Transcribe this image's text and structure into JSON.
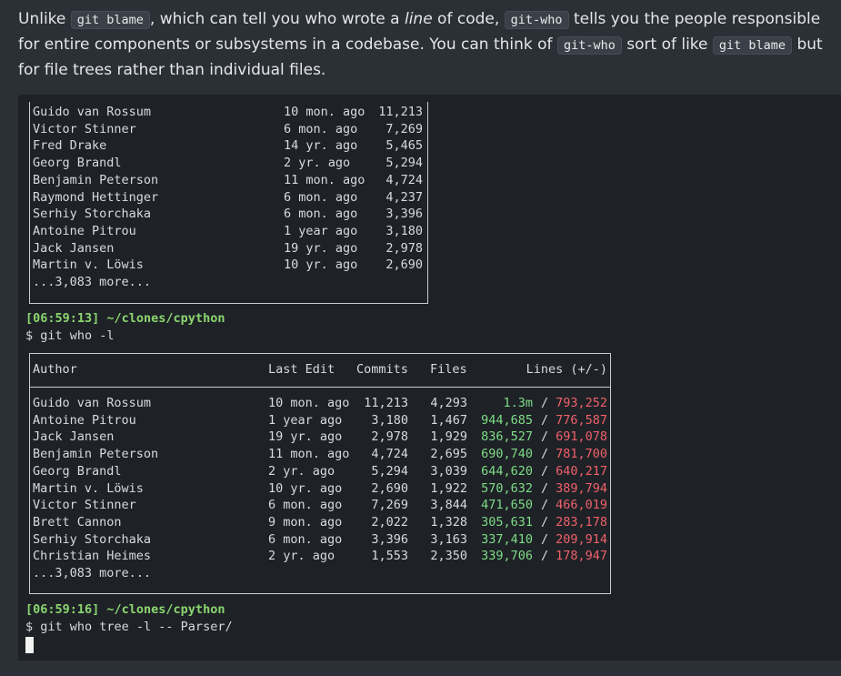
{
  "intro": {
    "p1": "Unlike ",
    "code1": "git blame",
    "p2": ", which can tell you who wrote a ",
    "em": "line",
    "p3": " of code, ",
    "code2": "git-who",
    "p4": " tells you the people responsible for entire components or subsystems in a codebase. You can think of ",
    "code3": "git-who",
    "p5": " sort of like ",
    "code4": "git blame",
    "p6": " but for file trees rather than individual files."
  },
  "table1": {
    "rows": [
      {
        "name": "Guido van Rossum",
        "edit": "10 mon. ago",
        "commits": "11,213"
      },
      {
        "name": "Victor Stinner",
        "edit": "6 mon. ago",
        "commits": "7,269"
      },
      {
        "name": "Fred Drake",
        "edit": "14 yr. ago",
        "commits": "5,465"
      },
      {
        "name": "Georg Brandl",
        "edit": "2 yr. ago",
        "commits": "5,294"
      },
      {
        "name": "Benjamin Peterson",
        "edit": "11 mon. ago",
        "commits": "4,724"
      },
      {
        "name": "Raymond Hettinger",
        "edit": "6 mon. ago",
        "commits": "4,237"
      },
      {
        "name": "Serhiy Storchaka",
        "edit": "6 mon. ago",
        "commits": "3,396"
      },
      {
        "name": "Antoine Pitrou",
        "edit": "1 year ago",
        "commits": "3,180"
      },
      {
        "name": "Jack Jansen",
        "edit": "19 yr. ago",
        "commits": "2,978"
      },
      {
        "name": "Martin v. Löwis",
        "edit": "10 yr. ago",
        "commits": "2,690"
      }
    ],
    "more": "...3,083 more..."
  },
  "cmd1": {
    "time": "[06:59:13] ~/clones/cpython",
    "command": "$ git who -l"
  },
  "table2": {
    "headers": {
      "author": "Author",
      "edit": "Last Edit",
      "commits": "Commits",
      "files": "Files",
      "lines": "Lines (+/-)"
    },
    "rows": [
      {
        "name": "Guido van Rossum",
        "edit": "10 mon. ago",
        "commits": "11,213",
        "files": "4,293",
        "added": "1.3m",
        "removed": "793,252"
      },
      {
        "name": "Antoine Pitrou",
        "edit": "1 year ago",
        "commits": "3,180",
        "files": "1,467",
        "added": "944,685",
        "removed": "776,587"
      },
      {
        "name": "Jack Jansen",
        "edit": "19 yr. ago",
        "commits": "2,978",
        "files": "1,929",
        "added": "836,527",
        "removed": "691,078"
      },
      {
        "name": "Benjamin Peterson",
        "edit": "11 mon. ago",
        "commits": "4,724",
        "files": "2,695",
        "added": "690,740",
        "removed": "781,700"
      },
      {
        "name": "Georg Brandl",
        "edit": "2 yr. ago",
        "commits": "5,294",
        "files": "3,039",
        "added": "644,620",
        "removed": "640,217"
      },
      {
        "name": "Martin v. Löwis",
        "edit": "10 yr. ago",
        "commits": "2,690",
        "files": "1,922",
        "added": "570,632",
        "removed": "389,794"
      },
      {
        "name": "Victor Stinner",
        "edit": "6 mon. ago",
        "commits": "7,269",
        "files": "3,844",
        "added": "471,650",
        "removed": "466,019"
      },
      {
        "name": "Brett Cannon",
        "edit": "9 mon. ago",
        "commits": "2,022",
        "files": "1,328",
        "added": "305,631",
        "removed": "283,178"
      },
      {
        "name": "Serhiy Storchaka",
        "edit": "6 mon. ago",
        "commits": "3,396",
        "files": "3,163",
        "added": "337,410",
        "removed": "209,914"
      },
      {
        "name": "Christian Heimes",
        "edit": "2 yr. ago",
        "commits": "1,553",
        "files": "2,350",
        "added": "339,706",
        "removed": "178,947"
      }
    ],
    "separator": "/",
    "more": "...3,083 more..."
  },
  "cmd2": {
    "time": "[06:59:16] ~/clones/cpython",
    "command": "$ git who tree -l -- Parser/"
  },
  "colors": {
    "prompt": "#8bd66f",
    "added": "#7fdc86",
    "removed": "#f0606a",
    "terminal_bg": "#1e2227",
    "page_bg": "#2b3036"
  }
}
